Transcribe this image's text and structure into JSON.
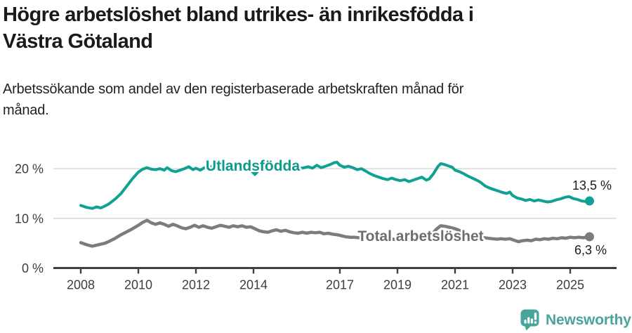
{
  "header": {
    "title_lines": [
      "Högre arbetslöshet bland utrikes- än inrikesfödda i",
      "Västra Götaland"
    ],
    "subtitle_lines": [
      "Arbetssökande som andel av den registerbaserade arbetskraften månad för",
      "månad."
    ]
  },
  "footer": {
    "brand": "Newsworthy"
  },
  "colors": {
    "accent_teal": "#0fa192",
    "series_gray": "#7c7c7c",
    "gray_label": "#6e6e6e",
    "axis": "#3f3f3f",
    "grid": "#dcdcdc",
    "logo_teal": "#4ba49b"
  },
  "chart_data": {
    "type": "line",
    "title": "Högre arbetslöshet bland utrikes- än inrikesfödda i Västra Götaland",
    "subtitle": "Arbetssökande som andel av den registerbaserade arbetskraften månad för månad.",
    "xlabel": "",
    "ylabel": "",
    "xlim": [
      2007.2,
      2026.6
    ],
    "ylim": [
      0,
      23
    ],
    "grid": "horizontal",
    "legend_position": "inline-labels",
    "xticks": [
      {
        "value": 2008,
        "label": "2008"
      },
      {
        "value": 2010,
        "label": "2010"
      },
      {
        "value": 2012,
        "label": "2012"
      },
      {
        "value": 2014,
        "label": "2014"
      },
      {
        "value": 2017,
        "label": "2017"
      },
      {
        "value": 2019,
        "label": "2019"
      },
      {
        "value": 2021,
        "label": "2021"
      },
      {
        "value": 2023,
        "label": "2023"
      },
      {
        "value": 2025,
        "label": "2025"
      }
    ],
    "yticks": [
      {
        "value": 0,
        "label": "0 %"
      },
      {
        "value": 10,
        "label": "10 %"
      },
      {
        "value": 20,
        "label": "20 %"
      }
    ],
    "series": [
      {
        "name": "Utlandsfödda",
        "color": "#0fa192",
        "end_label": "13,5 %",
        "last_value": 13.5,
        "points": [
          [
            2008.0,
            12.6
          ],
          [
            2008.2,
            12.2
          ],
          [
            2008.4,
            12.0
          ],
          [
            2008.55,
            12.3
          ],
          [
            2008.7,
            12.1
          ],
          [
            2008.85,
            12.5
          ],
          [
            2009.0,
            13.0
          ],
          [
            2009.2,
            13.9
          ],
          [
            2009.4,
            15.0
          ],
          [
            2009.6,
            16.5
          ],
          [
            2009.8,
            18.0
          ],
          [
            2010.0,
            19.3
          ],
          [
            2010.15,
            19.9
          ],
          [
            2010.3,
            20.2
          ],
          [
            2010.45,
            19.9
          ],
          [
            2010.6,
            19.8
          ],
          [
            2010.75,
            20.0
          ],
          [
            2010.9,
            19.7
          ],
          [
            2011.0,
            20.2
          ],
          [
            2011.15,
            19.6
          ],
          [
            2011.3,
            19.4
          ],
          [
            2011.45,
            19.7
          ],
          [
            2011.6,
            20.0
          ],
          [
            2011.75,
            20.4
          ],
          [
            2011.9,
            19.8
          ],
          [
            2012.0,
            20.1
          ],
          [
            2012.15,
            19.7
          ],
          [
            2012.3,
            20.2
          ],
          [
            2012.45,
            20.6
          ],
          [
            2012.6,
            20.2
          ],
          [
            2012.75,
            20.4
          ],
          [
            2012.9,
            20.1
          ],
          [
            2013.05,
            20.4
          ],
          [
            2013.2,
            20.2
          ],
          [
            2013.35,
            20.5
          ],
          [
            2013.5,
            20.2
          ],
          [
            2013.65,
            20.4
          ],
          [
            2013.8,
            20.1
          ],
          [
            2013.95,
            20.3
          ],
          [
            2014.1,
            20.0
          ],
          [
            2014.25,
            19.8
          ],
          [
            2014.4,
            20.1
          ],
          [
            2014.55,
            19.9
          ],
          [
            2014.7,
            20.2
          ],
          [
            2014.85,
            20.0
          ],
          [
            2015.0,
            20.3
          ],
          [
            2015.15,
            20.5
          ],
          [
            2015.3,
            20.1
          ],
          [
            2015.45,
            20.3
          ],
          [
            2015.6,
            20.0
          ],
          [
            2015.75,
            20.2
          ],
          [
            2015.9,
            20.4
          ],
          [
            2016.05,
            20.1
          ],
          [
            2016.2,
            20.7
          ],
          [
            2016.35,
            20.2
          ],
          [
            2016.5,
            20.5
          ],
          [
            2016.65,
            20.8
          ],
          [
            2016.8,
            21.2
          ],
          [
            2016.9,
            21.3
          ],
          [
            2017.0,
            20.7
          ],
          [
            2017.15,
            20.3
          ],
          [
            2017.3,
            20.5
          ],
          [
            2017.45,
            20.2
          ],
          [
            2017.6,
            19.8
          ],
          [
            2017.75,
            20.0
          ],
          [
            2017.9,
            19.5
          ],
          [
            2018.05,
            19.0
          ],
          [
            2018.2,
            18.6
          ],
          [
            2018.35,
            18.3
          ],
          [
            2018.5,
            18.0
          ],
          [
            2018.65,
            17.8
          ],
          [
            2018.8,
            18.1
          ],
          [
            2018.95,
            17.8
          ],
          [
            2019.1,
            17.6
          ],
          [
            2019.25,
            17.8
          ],
          [
            2019.4,
            17.4
          ],
          [
            2019.55,
            17.7
          ],
          [
            2019.7,
            18.0
          ],
          [
            2019.85,
            18.3
          ],
          [
            2020.0,
            17.7
          ],
          [
            2020.1,
            17.9
          ],
          [
            2020.25,
            19.0
          ],
          [
            2020.4,
            20.4
          ],
          [
            2020.5,
            21.0
          ],
          [
            2020.6,
            20.9
          ],
          [
            2020.75,
            20.6
          ],
          [
            2020.9,
            20.3
          ],
          [
            2021.0,
            19.7
          ],
          [
            2021.15,
            19.4
          ],
          [
            2021.3,
            19.0
          ],
          [
            2021.45,
            18.5
          ],
          [
            2021.6,
            18.1
          ],
          [
            2021.75,
            17.7
          ],
          [
            2021.9,
            17.2
          ],
          [
            2022.05,
            16.5
          ],
          [
            2022.2,
            16.1
          ],
          [
            2022.35,
            15.8
          ],
          [
            2022.5,
            15.5
          ],
          [
            2022.65,
            15.2
          ],
          [
            2022.8,
            15.0
          ],
          [
            2022.9,
            15.3
          ],
          [
            2023.0,
            14.6
          ],
          [
            2023.15,
            14.1
          ],
          [
            2023.3,
            13.9
          ],
          [
            2023.45,
            13.6
          ],
          [
            2023.6,
            13.8
          ],
          [
            2023.75,
            13.5
          ],
          [
            2023.9,
            13.7
          ],
          [
            2024.05,
            13.5
          ],
          [
            2024.2,
            13.3
          ],
          [
            2024.35,
            13.4
          ],
          [
            2024.5,
            13.7
          ],
          [
            2024.65,
            13.9
          ],
          [
            2024.8,
            14.2
          ],
          [
            2024.95,
            14.4
          ],
          [
            2025.1,
            14.0
          ],
          [
            2025.25,
            13.8
          ],
          [
            2025.4,
            13.5
          ],
          [
            2025.55,
            13.4
          ],
          [
            2025.67,
            13.5
          ]
        ]
      },
      {
        "name": "Total arbetslöshet",
        "color": "#7c7c7c",
        "end_label": "6,3 %",
        "last_value": 6.3,
        "points": [
          [
            2008.0,
            5.1
          ],
          [
            2008.2,
            4.7
          ],
          [
            2008.4,
            4.4
          ],
          [
            2008.55,
            4.6
          ],
          [
            2008.7,
            4.8
          ],
          [
            2008.85,
            5.0
          ],
          [
            2009.0,
            5.4
          ],
          [
            2009.2,
            6.0
          ],
          [
            2009.4,
            6.7
          ],
          [
            2009.6,
            7.3
          ],
          [
            2009.8,
            7.9
          ],
          [
            2010.0,
            8.6
          ],
          [
            2010.15,
            9.2
          ],
          [
            2010.3,
            9.6
          ],
          [
            2010.45,
            9.1
          ],
          [
            2010.6,
            8.8
          ],
          [
            2010.75,
            9.1
          ],
          [
            2010.9,
            8.8
          ],
          [
            2011.05,
            8.4
          ],
          [
            2011.2,
            8.8
          ],
          [
            2011.35,
            8.5
          ],
          [
            2011.5,
            8.1
          ],
          [
            2011.65,
            7.9
          ],
          [
            2011.8,
            8.2
          ],
          [
            2011.95,
            8.6
          ],
          [
            2012.1,
            8.2
          ],
          [
            2012.25,
            8.5
          ],
          [
            2012.4,
            8.2
          ],
          [
            2012.55,
            8.0
          ],
          [
            2012.7,
            8.3
          ],
          [
            2012.85,
            8.6
          ],
          [
            2013.0,
            8.4
          ],
          [
            2013.15,
            8.2
          ],
          [
            2013.3,
            8.5
          ],
          [
            2013.45,
            8.3
          ],
          [
            2013.6,
            8.5
          ],
          [
            2013.75,
            8.2
          ],
          [
            2013.9,
            8.3
          ],
          [
            2014.05,
            7.9
          ],
          [
            2014.2,
            7.5
          ],
          [
            2014.35,
            7.3
          ],
          [
            2014.5,
            7.2
          ],
          [
            2014.65,
            7.5
          ],
          [
            2014.8,
            7.7
          ],
          [
            2014.95,
            7.4
          ],
          [
            2015.1,
            7.6
          ],
          [
            2015.25,
            7.3
          ],
          [
            2015.4,
            7.1
          ],
          [
            2015.55,
            7.0
          ],
          [
            2015.7,
            7.2
          ],
          [
            2015.85,
            7.0
          ],
          [
            2016.0,
            7.2
          ],
          [
            2016.15,
            7.1
          ],
          [
            2016.3,
            7.2
          ],
          [
            2016.45,
            6.9
          ],
          [
            2016.6,
            7.0
          ],
          [
            2016.75,
            6.8
          ],
          [
            2016.9,
            6.7
          ],
          [
            2017.05,
            6.5
          ],
          [
            2017.2,
            6.3
          ],
          [
            2017.35,
            6.2
          ],
          [
            2017.5,
            6.2
          ],
          [
            2017.65,
            6.1
          ],
          [
            2017.8,
            6.2
          ],
          [
            2017.95,
            6.0
          ],
          [
            2018.1,
            5.9
          ],
          [
            2018.25,
            5.8
          ],
          [
            2018.4,
            5.9
          ],
          [
            2018.55,
            5.8
          ],
          [
            2018.7,
            5.9
          ],
          [
            2018.85,
            5.8
          ],
          [
            2019.0,
            5.7
          ],
          [
            2019.15,
            5.6
          ],
          [
            2019.3,
            5.7
          ],
          [
            2019.45,
            5.6
          ],
          [
            2019.6,
            5.7
          ],
          [
            2019.75,
            5.8
          ],
          [
            2019.9,
            5.9
          ],
          [
            2020.05,
            6.1
          ],
          [
            2020.2,
            6.8
          ],
          [
            2020.35,
            7.8
          ],
          [
            2020.5,
            8.5
          ],
          [
            2020.65,
            8.4
          ],
          [
            2020.8,
            8.2
          ],
          [
            2020.95,
            8.0
          ],
          [
            2021.1,
            7.7
          ],
          [
            2021.25,
            7.3
          ],
          [
            2021.4,
            7.0
          ],
          [
            2021.55,
            6.7
          ],
          [
            2021.7,
            6.4
          ],
          [
            2021.85,
            6.2
          ],
          [
            2022.0,
            6.1
          ],
          [
            2022.15,
            6.0
          ],
          [
            2022.3,
            5.9
          ],
          [
            2022.45,
            5.8
          ],
          [
            2022.6,
            5.9
          ],
          [
            2022.75,
            5.8
          ],
          [
            2022.9,
            5.9
          ],
          [
            2023.05,
            5.6
          ],
          [
            2023.2,
            5.3
          ],
          [
            2023.35,
            5.5
          ],
          [
            2023.5,
            5.6
          ],
          [
            2023.65,
            5.5
          ],
          [
            2023.8,
            5.8
          ],
          [
            2023.95,
            5.7
          ],
          [
            2024.1,
            5.9
          ],
          [
            2024.25,
            5.8
          ],
          [
            2024.4,
            6.0
          ],
          [
            2024.55,
            5.9
          ],
          [
            2024.7,
            6.1
          ],
          [
            2024.85,
            6.0
          ],
          [
            2025.0,
            6.2
          ],
          [
            2025.15,
            6.1
          ],
          [
            2025.3,
            6.2
          ],
          [
            2025.45,
            6.1
          ],
          [
            2025.67,
            6.3
          ]
        ]
      }
    ]
  }
}
